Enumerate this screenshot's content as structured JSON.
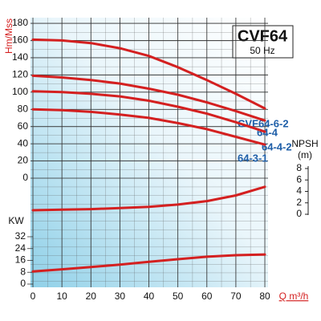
{
  "chart_data": [
    {
      "type": "line",
      "title": "CVF64",
      "subtitle": "50 Hz",
      "ylabel": "Hm/Mss",
      "xlabel": "Q m³/h",
      "x": [
        0,
        10,
        20,
        30,
        40,
        50,
        60,
        70,
        80
      ],
      "xlim": [
        0,
        80
      ],
      "xticks": [
        0,
        10,
        20,
        30,
        40,
        50,
        60,
        70,
        80
      ],
      "ylim": [
        0,
        180
      ],
      "yticks": [
        0,
        20,
        40,
        60,
        80,
        100,
        120,
        140,
        160,
        180
      ],
      "series": [
        {
          "name": "CVF64-6-2",
          "color": "#d42020",
          "values": [
            161,
            160,
            157,
            151,
            142,
            129,
            114,
            98,
            81
          ]
        },
        {
          "name": "64-4",
          "color": "#d42020",
          "values": [
            119,
            117,
            114,
            110,
            104,
            97,
            88,
            78,
            67
          ]
        },
        {
          "name": "64-4-2",
          "color": "#d42020",
          "values": [
            101,
            100,
            98,
            95,
            90,
            83,
            75,
            65,
            54
          ]
        },
        {
          "name": "64-3-1",
          "color": "#d42020",
          "values": [
            80,
            79,
            77,
            74,
            70,
            64,
            57,
            48,
            39
          ]
        }
      ]
    },
    {
      "type": "line",
      "ylabel": "NPSH",
      "yunit": "(m)",
      "x": [
        0,
        10,
        20,
        30,
        40,
        50,
        60,
        70,
        80
      ],
      "ylim": [
        0,
        8
      ],
      "yticks": [
        0,
        2,
        4,
        6,
        8
      ],
      "series": [
        {
          "color": "#d42020",
          "values": [
            0.7,
            0.8,
            0.9,
            1.1,
            1.3,
            1.7,
            2.3,
            3.3,
            4.8
          ]
        }
      ]
    },
    {
      "type": "line",
      "ylabel": "KW",
      "x": [
        0,
        10,
        20,
        30,
        40,
        50,
        60,
        70,
        80
      ],
      "ylim": [
        0,
        32
      ],
      "yticks": [
        0,
        8,
        16,
        24,
        32
      ],
      "series": [
        {
          "color": "#d42020",
          "values": [
            8.5,
            10,
            11.5,
            13.2,
            15,
            16.8,
            18.5,
            19.5,
            20
          ]
        }
      ]
    }
  ]
}
